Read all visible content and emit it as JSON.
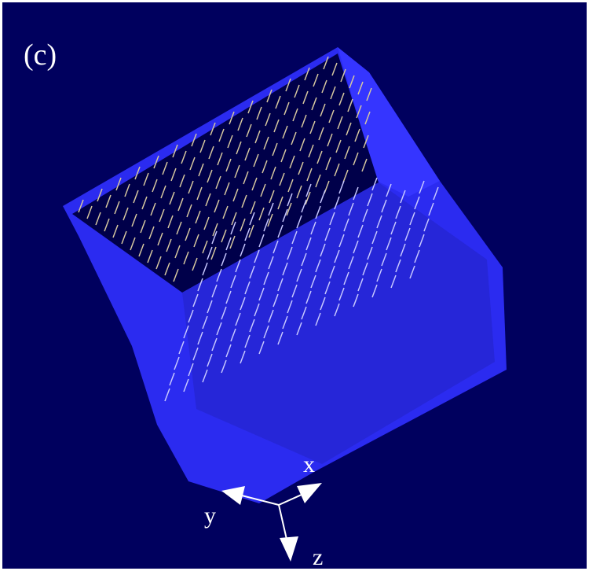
{
  "panel_label": "(c)",
  "axes": {
    "x": "x",
    "y": "y",
    "z": "z"
  }
}
